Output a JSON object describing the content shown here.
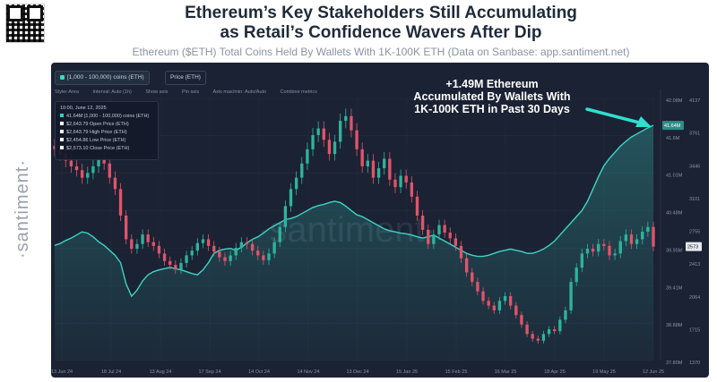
{
  "header": {
    "title_line1": "Ethereum’s Key Stakeholders Still Accumulating",
    "title_line2": "as Retail’s Confidence Wavers After Dip",
    "subtitle": "Ethereum ($ETH) Total Coins Held By Wallets With 1K-100K ETH (Data on Sanbase: app.santiment.net)"
  },
  "watermark": {
    "side": "·santiment·",
    "center": "·santiment·"
  },
  "controls": {
    "metric_chip": "[1,000 - 100,000) coins (ETH)",
    "price_chip": "Price (ETH)",
    "toolbar": [
      "Styler Area",
      "Interval: Auto (1h)",
      "Show axis",
      "Pin axis",
      "Axis max/min: Auto/Auto",
      "Combine metrics"
    ]
  },
  "tooltip": {
    "date": "10:00, June 12, 2025",
    "rows": [
      {
        "value": "41.64M",
        "label": "[1,000 - 100,000) coins (ETH)",
        "color": "#37d0c0"
      },
      {
        "value": "$2,643.79",
        "label": "Open Price (ETH)",
        "color": "#ffffff"
      },
      {
        "value": "$2,643.79",
        "label": "High Price (ETH)",
        "color": "#ffffff"
      },
      {
        "value": "$2,454.86",
        "label": "Low Price (ETH)",
        "color": "#ffffff"
      },
      {
        "value": "$2,573.10",
        "label": "Close Price (ETH)",
        "color": "#ffffff"
      }
    ]
  },
  "annotation": [
    "+1.49M Ethereum",
    "Accumulated By Wallets With",
    "1K-100K ETH in Past 30 Days"
  ],
  "colors": {
    "holdings": "#3bd6c6",
    "up": "#2fb39c",
    "down": "#e0546b",
    "panel": "#1b2233",
    "arrow": "#2fe0d0"
  },
  "chart_data": {
    "type": "line",
    "x_ticks": [
      "13 Jun 24",
      "18 Jul 24",
      "13 Aug 24",
      "17 Sep 24",
      "14 Oct 24",
      "14 Nov 24",
      "13 Dec 24",
      "15 Jan 25",
      "15 Feb 25",
      "16 Mar 25",
      "18 Apr 25",
      "19 May 25",
      "12 Jun 25"
    ],
    "left_axis": {
      "label": "Holdings (ETH)",
      "ticks": [
        "42.08M",
        "41.6M",
        "41.01M",
        "40.48M",
        "39.95M",
        "39.41M",
        "38.88M",
        "37.80M"
      ],
      "current": "41.64M"
    },
    "right_axis": {
      "label": "Price (USD)",
      "ticks": [
        "4137",
        "3761",
        "3446",
        "3101",
        "2755",
        "2413",
        "2064",
        "1715",
        "1370"
      ],
      "current": "2573"
    },
    "series": [
      {
        "name": "[1,000 - 100,000) coins (ETH)",
        "unit": "M ETH",
        "values": [
          39.68,
          39.71,
          39.76,
          39.8,
          39.85,
          39.9,
          39.88,
          39.82,
          39.74,
          39.68,
          39.6,
          39.52,
          39.4,
          39.05,
          38.85,
          38.95,
          39.1,
          39.2,
          39.25,
          39.28,
          39.3,
          39.32,
          39.3,
          39.28,
          39.25,
          39.22,
          39.2,
          39.28,
          39.4,
          39.55,
          39.6,
          39.62,
          39.63,
          39.6,
          39.65,
          39.72,
          39.78,
          39.82,
          39.88,
          39.95,
          40.0,
          40.05,
          40.1,
          40.12,
          40.15,
          40.2,
          40.25,
          40.3,
          40.33,
          40.35,
          40.38,
          40.4,
          40.38,
          40.32,
          40.25,
          40.18,
          40.15,
          40.1,
          40.05,
          40.0,
          39.95,
          39.92,
          39.9,
          39.88,
          39.87,
          39.85,
          39.82,
          39.8,
          39.82,
          39.85,
          39.8,
          39.75,
          39.7,
          39.65,
          39.6,
          39.55,
          39.52,
          39.5,
          39.5,
          39.52,
          39.55,
          39.58,
          39.6,
          39.62,
          39.6,
          39.58,
          39.55,
          39.55,
          39.58,
          39.62,
          39.68,
          39.75,
          39.85,
          39.95,
          40.05,
          40.15,
          40.25,
          40.4,
          40.6,
          40.8,
          40.98,
          41.1,
          41.2,
          41.3,
          41.38,
          41.45,
          41.5,
          41.55,
          41.6,
          41.64
        ]
      },
      {
        "name": "Price (ETH)",
        "unit": "USD",
        "values": [
          3600,
          3550,
          3480,
          3420,
          3380,
          3300,
          3350,
          3420,
          3500,
          3450,
          3300,
          3180,
          2900,
          2650,
          2550,
          2600,
          2700,
          2620,
          2580,
          2500,
          2420,
          2380,
          2330,
          2400,
          2480,
          2530,
          2610,
          2650,
          2580,
          2520,
          2460,
          2420,
          2480,
          2560,
          2620,
          2600,
          2530,
          2480,
          2430,
          2500,
          2620,
          2780,
          3000,
          3180,
          3300,
          3450,
          3600,
          3750,
          3820,
          3700,
          3550,
          3680,
          3900,
          3950,
          3800,
          3600,
          3420,
          3480,
          3300,
          3400,
          3500,
          3280,
          3200,
          3320,
          3250,
          3100,
          2900,
          2750,
          2600,
          2700,
          2800,
          2720,
          2660,
          2580,
          2450,
          2300,
          2200,
          2100,
          2000,
          1950,
          1900,
          2000,
          2050,
          1950,
          1850,
          1750,
          1650,
          1600,
          1580,
          1650,
          1700,
          1680,
          1800,
          1900,
          2200,
          2350,
          2500,
          2550,
          2520,
          2600,
          2580,
          2480,
          2500,
          2630,
          2700,
          2600,
          2650,
          2730,
          2780,
          2573
        ]
      }
    ],
    "holdings_range": [
      37.8,
      42.08
    ],
    "price_range": [
      1370,
      4137
    ]
  }
}
